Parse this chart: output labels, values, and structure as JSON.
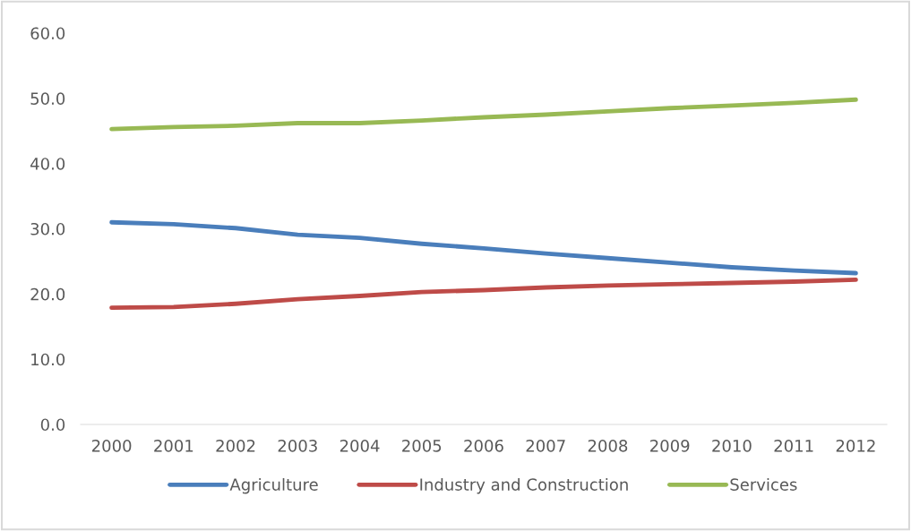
{
  "chart_data": {
    "type": "line",
    "categories": [
      "2000",
      "2001",
      "2002",
      "2003",
      "2004",
      "2005",
      "2006",
      "2007",
      "2008",
      "2009",
      "2010",
      "2011",
      "2012"
    ],
    "series": [
      {
        "name": "Agriculture",
        "color": "#4a7ebb",
        "values": [
          31.0,
          30.7,
          30.1,
          29.1,
          28.6,
          27.7,
          27.0,
          26.2,
          25.5,
          24.8,
          24.1,
          23.6,
          23.2
        ]
      },
      {
        "name": "Industry and Construction",
        "color": "#be4b48",
        "values": [
          17.9,
          18.0,
          18.5,
          19.2,
          19.7,
          20.3,
          20.6,
          21.0,
          21.3,
          21.5,
          21.7,
          21.9,
          22.2
        ]
      },
      {
        "name": "Services",
        "color": "#98b954",
        "values": [
          45.3,
          45.6,
          45.8,
          46.2,
          46.2,
          46.6,
          47.1,
          47.5,
          48.0,
          48.5,
          48.9,
          49.3,
          49.8
        ]
      }
    ],
    "ylim": [
      0,
      60
    ],
    "yticks": [
      {
        "value": 0,
        "label": "0.0"
      },
      {
        "value": 10,
        "label": "10.0"
      },
      {
        "value": 20,
        "label": "20.0"
      },
      {
        "value": 30,
        "label": "30.0"
      },
      {
        "value": 40,
        "label": "40.0"
      },
      {
        "value": 50,
        "label": "50.0"
      },
      {
        "value": 60,
        "label": "60.0"
      }
    ],
    "grid": false,
    "legend": "bottom",
    "marker": "none",
    "line_style": "solid"
  }
}
